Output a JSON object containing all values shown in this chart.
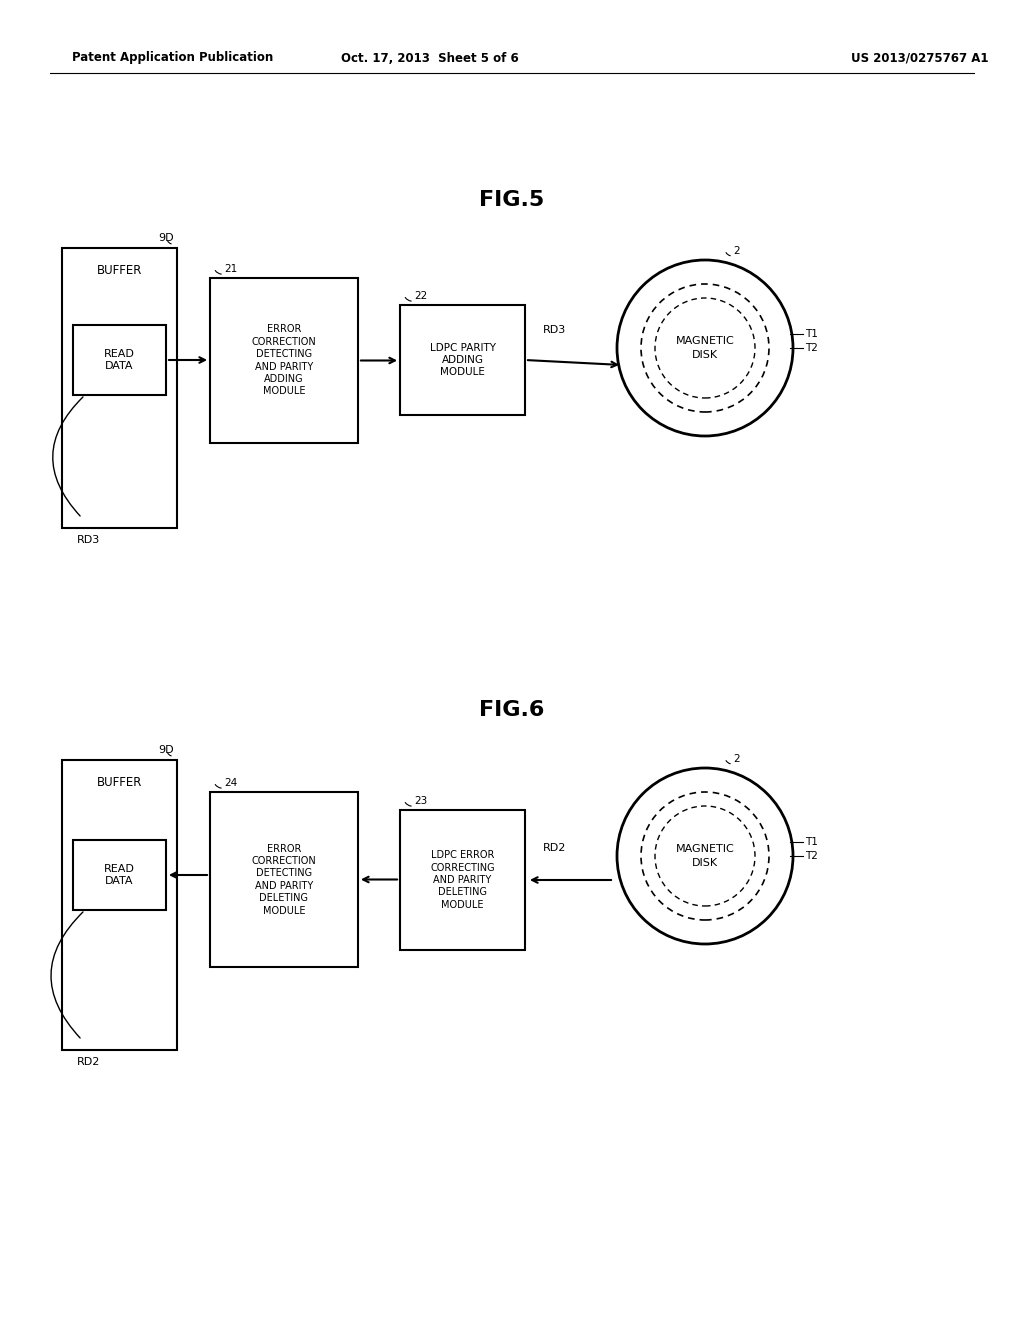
{
  "bg_color": "#ffffff",
  "header_left": "Patent Application Publication",
  "header_mid": "Oct. 17, 2013  Sheet 5 of 6",
  "header_right": "US 2013/0275767 A1",
  "fig5_title": "FIG.5",
  "fig6_title": "FIG.6"
}
